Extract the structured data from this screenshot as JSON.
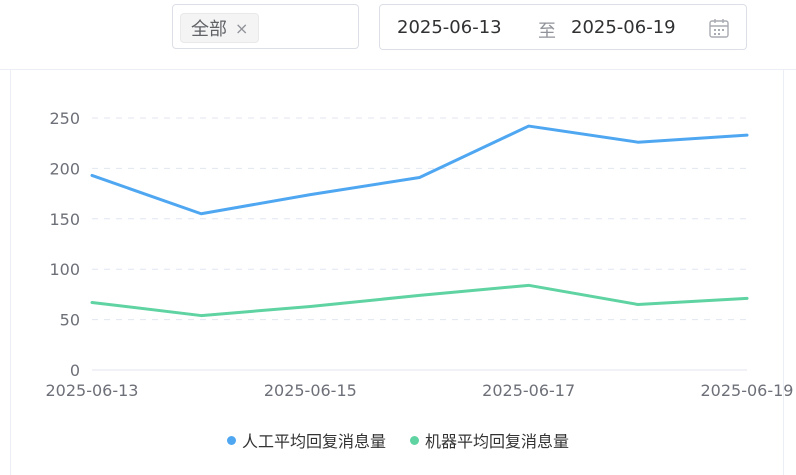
{
  "filter": {
    "tag_label": "全部",
    "tag_close": "×"
  },
  "date_range": {
    "start": "2025-06-13",
    "separator": "至",
    "end": "2025-06-19"
  },
  "chart_data": {
    "type": "line",
    "x": [
      "2025-06-13",
      "2025-06-14",
      "2025-06-15",
      "2025-06-16",
      "2025-06-17",
      "2025-06-18",
      "2025-06-19"
    ],
    "x_tick_labels": [
      "2025-06-13",
      "2025-06-15",
      "2025-06-17",
      "2025-06-19"
    ],
    "ylim": [
      0,
      250
    ],
    "y_ticks": [
      0,
      50,
      100,
      150,
      200,
      250
    ],
    "grid": true,
    "legend_position": "bottom",
    "series": [
      {
        "name": "人工平均回复消息量",
        "color": "#4fa7f2",
        "values": [
          193,
          155,
          174,
          191,
          242,
          226,
          233
        ]
      },
      {
        "name": "机器平均回复消息量",
        "color": "#5fd3a2",
        "values": [
          67,
          54,
          63,
          74,
          84,
          65,
          71
        ]
      }
    ]
  }
}
